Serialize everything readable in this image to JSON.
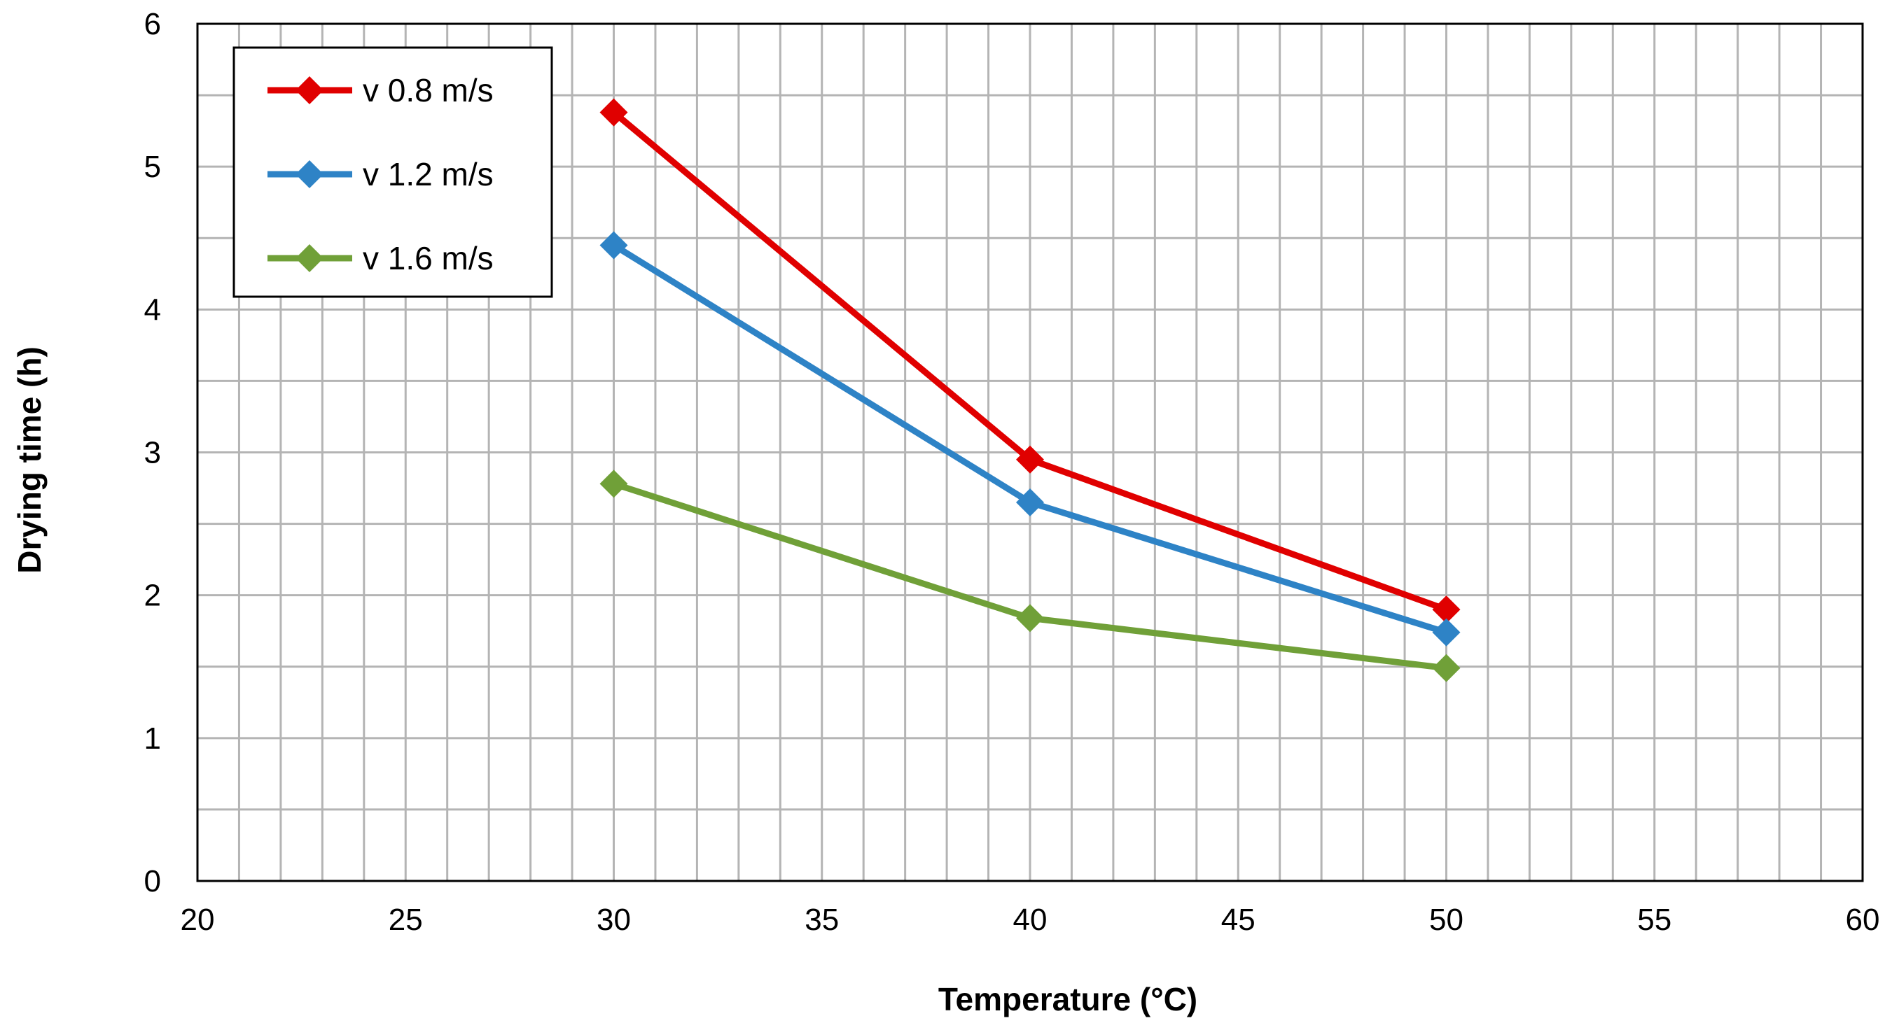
{
  "chart_data": {
    "type": "line",
    "title": "",
    "xlabel": "Temperature (°C)",
    "ylabel": "Drying time (h)",
    "xlim": [
      20,
      60
    ],
    "ylim": [
      0,
      6
    ],
    "x_major_ticks": [
      20,
      25,
      30,
      35,
      40,
      45,
      50,
      55,
      60
    ],
    "x_tick_labels": [
      "20",
      "25",
      "30",
      "35",
      "40",
      "45",
      "50",
      "55",
      "60"
    ],
    "y_major_ticks": [
      0,
      1,
      2,
      3,
      4,
      5,
      6
    ],
    "y_tick_labels": [
      "0",
      "1",
      "2",
      "3",
      "4",
      "5",
      "6"
    ],
    "x_minor_step": 1,
    "y_minor_step": 0.5,
    "grid": true,
    "legend_position": "top-left",
    "series": [
      {
        "name": "v 0.8 m/s",
        "color": "#e00000",
        "marker": "diamond",
        "x": [
          30,
          40,
          50
        ],
        "y": [
          5.38,
          2.95,
          1.9
        ]
      },
      {
        "name": "v 1.2 m/s",
        "color": "#2e83c6",
        "marker": "diamond",
        "x": [
          30,
          40,
          50
        ],
        "y": [
          4.45,
          2.65,
          1.74
        ]
      },
      {
        "name": "v 1.6 m/s",
        "color": "#70a038",
        "marker": "diamond",
        "x": [
          30,
          40,
          50
        ],
        "y": [
          2.78,
          1.84,
          1.49
        ]
      }
    ]
  }
}
